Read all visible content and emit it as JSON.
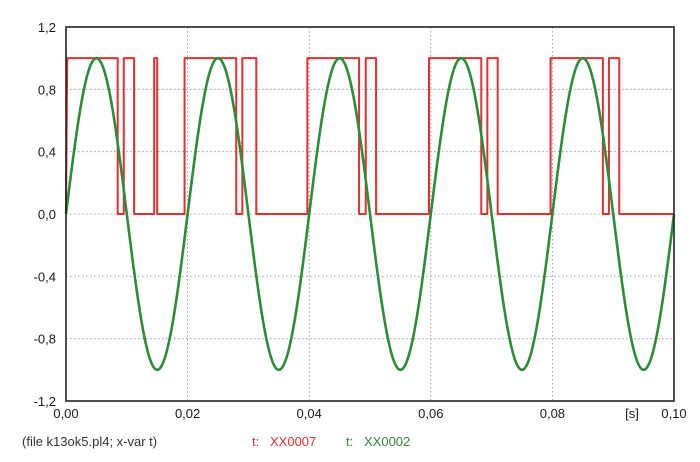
{
  "chart_data": {
    "type": "line",
    "title": "",
    "xlabel": "",
    "x_unit_label": "[s]",
    "ylabel": "",
    "xlim": [
      0.0,
      0.1
    ],
    "ylim": [
      -1.2,
      1.2
    ],
    "grid": true,
    "x_ticks": [
      {
        "value": 0.0,
        "label": "0,00"
      },
      {
        "value": 0.02,
        "label": "0,02"
      },
      {
        "value": 0.04,
        "label": "0,04"
      },
      {
        "value": 0.06,
        "label": "0,06"
      },
      {
        "value": 0.08,
        "label": "0,08"
      },
      {
        "value": 0.1,
        "label": "0,10"
      }
    ],
    "y_ticks": [
      {
        "value": 1.2,
        "label": "1,2"
      },
      {
        "value": 0.8,
        "label": "0,8"
      },
      {
        "value": 0.4,
        "label": "0,4"
      },
      {
        "value": 0.0,
        "label": "0,0"
      },
      {
        "value": -0.4,
        "label": "-0,4"
      },
      {
        "value": -0.8,
        "label": "-0,8"
      },
      {
        "value": -1.2,
        "label": "-1,2"
      }
    ],
    "legend": {
      "placement": "bottom",
      "file_label": "(file k13ok5.pl4; x-var t)",
      "entries": [
        {
          "prefix": "t:",
          "name": "XX0007"
        },
        {
          "prefix": "t:",
          "name": "XX0002"
        }
      ]
    },
    "series": [
      {
        "name": "XX0007",
        "color": "#e03030",
        "style": "step",
        "points": [
          [
            0.0,
            0
          ],
          [
            0.0002,
            1
          ],
          [
            0.0085,
            1
          ],
          [
            0.0085,
            0
          ],
          [
            0.0095,
            0
          ],
          [
            0.0095,
            1
          ],
          [
            0.0112,
            1
          ],
          [
            0.0112,
            0
          ],
          [
            0.0145,
            0
          ],
          [
            0.0145,
            1
          ],
          [
            0.015,
            1
          ],
          [
            0.015,
            0
          ],
          [
            0.0195,
            0
          ],
          [
            0.0195,
            1
          ],
          [
            0.028,
            1
          ],
          [
            0.028,
            0
          ],
          [
            0.029,
            0
          ],
          [
            0.029,
            1
          ],
          [
            0.0313,
            1
          ],
          [
            0.0313,
            0
          ],
          [
            0.0397,
            0
          ],
          [
            0.0397,
            1
          ],
          [
            0.0482,
            1
          ],
          [
            0.0482,
            0
          ],
          [
            0.0493,
            0
          ],
          [
            0.0493,
            1
          ],
          [
            0.051,
            1
          ],
          [
            0.051,
            0
          ],
          [
            0.0597,
            0
          ],
          [
            0.0597,
            1
          ],
          [
            0.0683,
            1
          ],
          [
            0.0683,
            0
          ],
          [
            0.0693,
            0
          ],
          [
            0.0693,
            1
          ],
          [
            0.071,
            1
          ],
          [
            0.071,
            0
          ],
          [
            0.0797,
            0
          ],
          [
            0.0797,
            1
          ],
          [
            0.0883,
            1
          ],
          [
            0.0883,
            0
          ],
          [
            0.0893,
            0
          ],
          [
            0.0893,
            1
          ],
          [
            0.091,
            1
          ],
          [
            0.091,
            0
          ],
          [
            0.1,
            0
          ]
        ]
      },
      {
        "name": "XX0002",
        "color": "#2e8b3a",
        "style": "line",
        "function": "sine",
        "amplitude": 1.0,
        "frequency_hz": 50,
        "phase": 0
      }
    ]
  },
  "colors": {
    "axis": "#222222",
    "grid": "#8a8a8a",
    "legend_text": "#333333",
    "red_series": "#e03030",
    "green_series": "#2e8b3a"
  }
}
